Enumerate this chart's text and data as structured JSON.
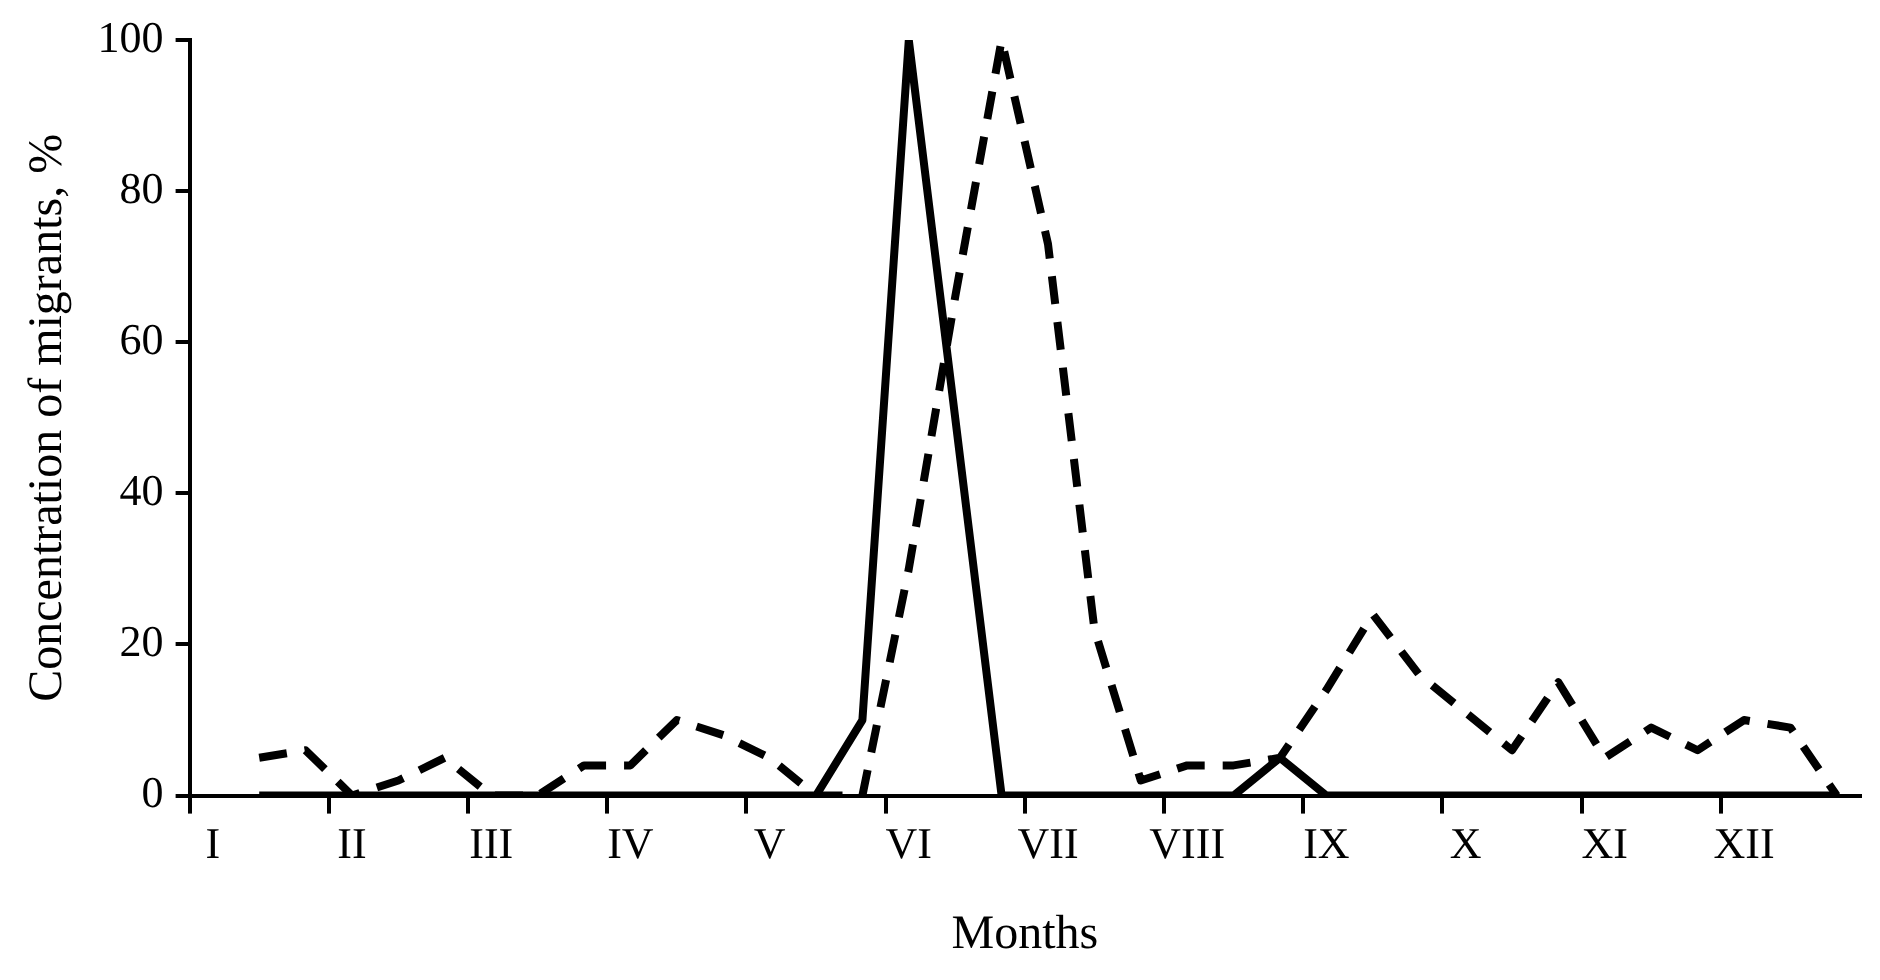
{
  "chart_data": {
    "type": "line",
    "xlabel": "Months",
    "ylabel": "Concentration of migrants, %",
    "categories": [
      "I",
      null,
      null,
      "II",
      null,
      null,
      "III",
      null,
      null,
      "IV",
      null,
      null,
      "V",
      null,
      null,
      "VI",
      null,
      null,
      "VII",
      null,
      null,
      "VIII",
      null,
      null,
      "IX",
      null,
      null,
      "X",
      null,
      null,
      "XI",
      null,
      null,
      "XII",
      null,
      null
    ],
    "series": [
      {
        "color": "#000000",
        "line_style": "solid",
        "values": [
          null,
          0,
          0,
          0,
          0,
          0,
          0,
          0,
          0,
          0,
          0,
          0,
          0,
          0,
          10,
          100,
          50,
          0,
          0,
          0,
          0,
          0,
          0,
          5,
          0,
          0,
          0,
          0,
          0,
          0,
          0,
          0,
          0,
          0,
          0,
          0
        ]
      },
      {
        "color": "#000000",
        "line_style": "dashed",
        "values": [
          null,
          5,
          6,
          0,
          2,
          5,
          0,
          0,
          4,
          4,
          10,
          8,
          5,
          0,
          0,
          30,
          66,
          100,
          73,
          22,
          2,
          4,
          4,
          5,
          14,
          24,
          16,
          11,
          6,
          15,
          5,
          9,
          6,
          10,
          9,
          0
        ]
      }
    ],
    "ylim": [
      0,
      100
    ],
    "yticks": [
      0,
      20,
      40,
      60,
      80,
      100
    ],
    "grid": false,
    "legend": false,
    "marker": "none"
  }
}
